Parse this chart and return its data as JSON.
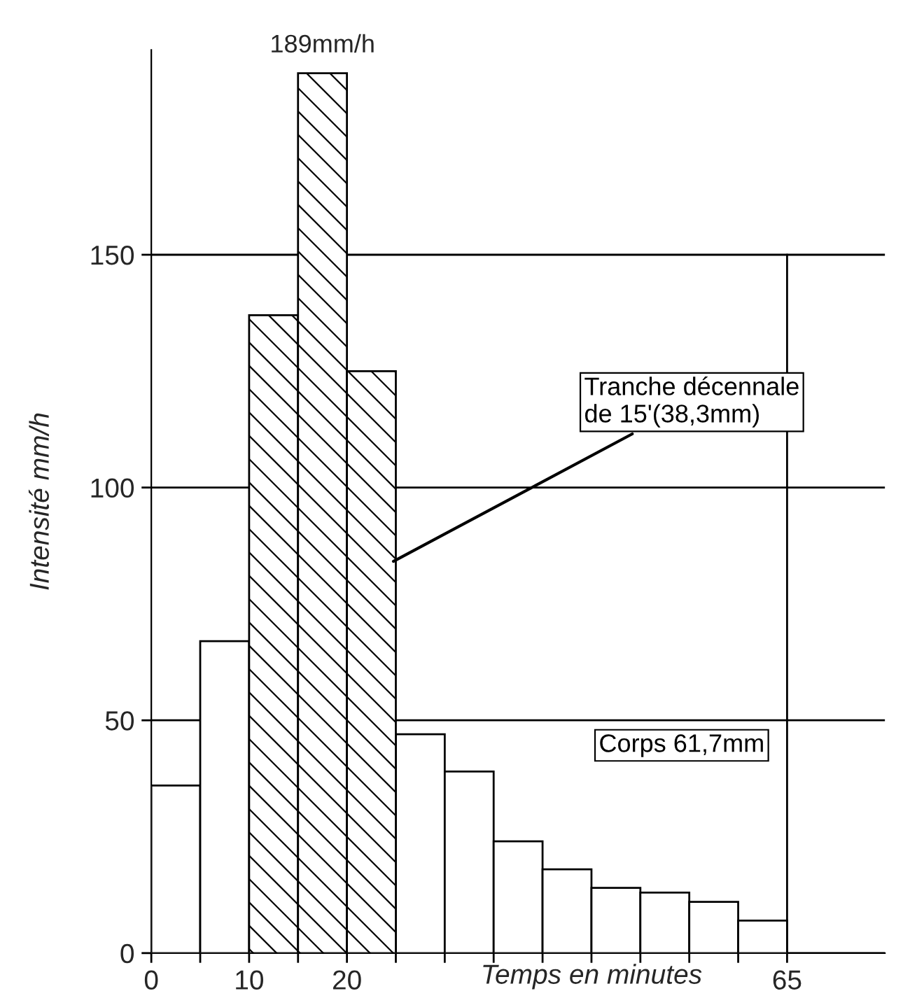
{
  "chart_data": {
    "type": "histogram",
    "xlabel": "Temps en minutes",
    "ylabel": "Intensité mm/h",
    "bins": [
      0,
      5,
      10,
      15,
      20,
      25,
      30,
      35,
      40,
      45,
      50,
      55,
      60,
      65
    ],
    "series": [
      {
        "name": "Corps 61,7mm",
        "color": "#000000",
        "values": [
          36,
          67,
          null,
          null,
          null,
          47,
          39,
          24,
          18,
          14,
          13,
          11,
          7
        ]
      },
      {
        "name": "Tranche décennale\nde 15'(38,3mm)",
        "color": "#000000",
        "values": [
          null,
          null,
          137,
          189,
          125,
          null,
          null,
          null,
          null,
          null,
          null,
          null,
          null
        ]
      }
    ],
    "annotations": [
      {
        "text": "189mm/h",
        "x": 17.5,
        "y": 189
      }
    ],
    "xlim": [
      0,
      75
    ],
    "ylim": [
      0,
      194
    ],
    "xticks": [
      0,
      {
        "value": 5,
        "label": null
      },
      10,
      {
        "value": 15,
        "label": null
      },
      20,
      {
        "value": 25,
        "label": null
      },
      {
        "value": 30,
        "label": null
      },
      {
        "value": 35,
        "label": null
      },
      {
        "value": 40,
        "label": null
      },
      {
        "value": 45,
        "label": null
      },
      {
        "value": 50,
        "label": null
      },
      {
        "value": 55,
        "label": null
      },
      {
        "value": 60,
        "label": null
      },
      65
    ],
    "yticks": [
      0,
      50,
      100,
      150
    ],
    "ref_lines": [
      {
        "axis": "x",
        "value": 65,
        "label": null
      }
    ],
    "grid": "y"
  }
}
